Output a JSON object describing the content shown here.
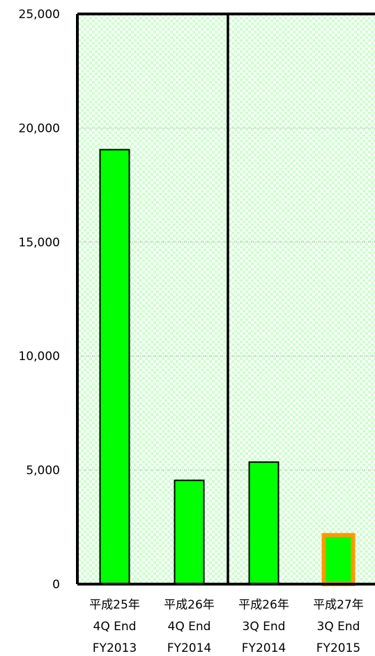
{
  "chart_data": {
    "type": "bar",
    "categories": [
      [
        "平成25年",
        "4Q End",
        "FY2013"
      ],
      [
        "平成26年",
        "4Q End",
        "FY2014"
      ],
      [
        "平成26年",
        "3Q End",
        "FY2014"
      ],
      [
        "平成27年",
        "3Q End",
        "FY2015"
      ]
    ],
    "values": [
      19050,
      4550,
      5350,
      2150
    ],
    "highlighted_index": 3,
    "ylim": [
      0,
      25000
    ],
    "yticks": [
      0,
      5000,
      10000,
      15000,
      20000,
      25000
    ],
    "ytick_labels": [
      "0",
      "5,000",
      "10,000",
      "15,000",
      "20,000",
      "25,000"
    ],
    "grid": true,
    "colors": {
      "bar": "#00ff00",
      "bar_border": "#000000",
      "highlight_border": "#ff9900",
      "plot_bg": "#ffffff",
      "plot_pattern": "#ccffcc",
      "gridline": "#9e9e9e"
    }
  }
}
